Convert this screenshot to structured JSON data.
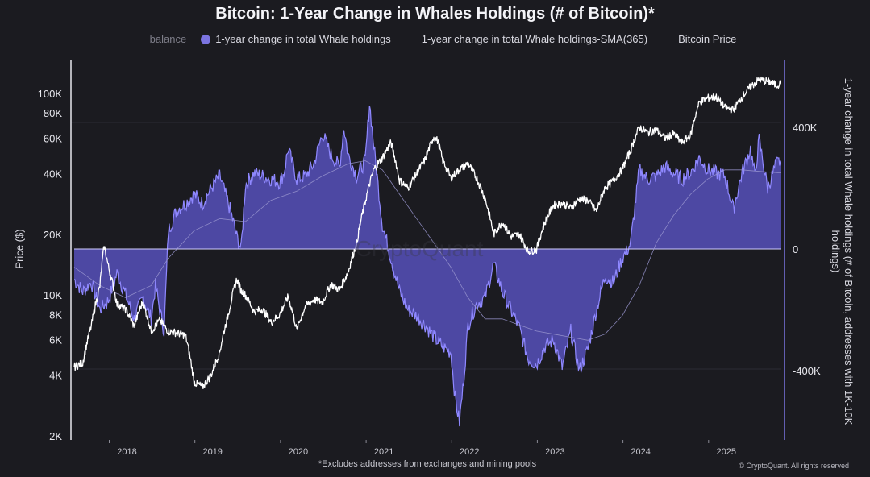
{
  "title": "Bitcoin: 1-Year Change in Whales Holdings (# of Bitcoin)*",
  "legend": [
    {
      "label": "balance",
      "style": "dim"
    },
    {
      "label": "1-year change in total Whale holdings",
      "style": "dot"
    },
    {
      "label": "1-year change in total Whale holdings-SMA(365)",
      "style": "sma"
    },
    {
      "label": "Bitcoin Price",
      "style": "white"
    }
  ],
  "footnote": "*Excludes addresses from exchanges and mining pools",
  "copyright": "© CryptoQuant. All rights reserved",
  "watermark": "CryptoQuant",
  "colors": {
    "background": "#1b1b20",
    "area_fill": "#5b55c8",
    "area_line": "#8f88ff",
    "price_line": "#ffffff",
    "sma_line": "#9a96d0",
    "right_axis": "#7b74e0"
  },
  "chart_data": {
    "type": "line",
    "title": "Bitcoin: 1-Year Change in Whales Holdings (# of Bitcoin)*",
    "xlabel": "",
    "ylabel_left": "Price ($)",
    "ylabel_right": "1-year change in total Whale holdings (# of Bitcoin, addresses with 1K-10K holdings)",
    "x_ticks": [
      "2018",
      "2019",
      "2020",
      "2021",
      "2022",
      "2023",
      "2024",
      "2025"
    ],
    "x_range": [
      2017.6,
      2025.85
    ],
    "y_left_scale": "log",
    "y_left_range": [
      2000,
      150000
    ],
    "y_left_ticks": [
      {
        "value": 2000,
        "label": "2K"
      },
      {
        "value": 4000,
        "label": "4K"
      },
      {
        "value": 6000,
        "label": "6K"
      },
      {
        "value": 8000,
        "label": "8K"
      },
      {
        "value": 10000,
        "label": "10K"
      },
      {
        "value": 20000,
        "label": "20K"
      },
      {
        "value": 40000,
        "label": "40K"
      },
      {
        "value": 60000,
        "label": "60K"
      },
      {
        "value": 80000,
        "label": "80K"
      },
      {
        "value": 100000,
        "label": "100K"
      }
    ],
    "y_right_range": [
      -600000,
      600000
    ],
    "y_right_ticks": [
      {
        "value": 400000,
        "label": "400K"
      },
      {
        "value": 0,
        "label": "0"
      },
      {
        "value": -400000,
        "label": "-400K"
      }
    ],
    "series": [
      {
        "name": "1-year change in total Whale holdings",
        "kind": "area",
        "x": [
          2017.6,
          2017.7,
          2017.8,
          2017.9,
          2018.0,
          2018.1,
          2018.2,
          2018.3,
          2018.4,
          2018.5,
          2018.55,
          2018.6,
          2018.65,
          2018.7,
          2018.8,
          2018.9,
          2019.0,
          2019.1,
          2019.2,
          2019.3,
          2019.4,
          2019.45,
          2019.5,
          2019.55,
          2019.6,
          2019.65,
          2019.7,
          2019.8,
          2019.9,
          2020.0,
          2020.05,
          2020.1,
          2020.2,
          2020.3,
          2020.4,
          2020.5,
          2020.6,
          2020.7,
          2020.75,
          2020.8,
          2020.9,
          2021.0,
          2021.05,
          2021.1,
          2021.2,
          2021.3,
          2021.4,
          2021.5,
          2021.6,
          2021.7,
          2021.8,
          2021.9,
          2022.0,
          2022.05,
          2022.1,
          2022.15,
          2022.2,
          2022.3,
          2022.4,
          2022.5,
          2022.6,
          2022.7,
          2022.8,
          2022.9,
          2023.0,
          2023.1,
          2023.2,
          2023.3,
          2023.4,
          2023.5,
          2023.6,
          2023.7,
          2023.8,
          2023.9,
          2024.0,
          2024.05,
          2024.1,
          2024.2,
          2024.3,
          2024.4,
          2024.5,
          2024.6,
          2024.7,
          2024.8,
          2024.9,
          2025.0,
          2025.1,
          2025.2,
          2025.3,
          2025.4,
          2025.5,
          2025.55,
          2025.6,
          2025.7,
          2025.8,
          2025.85
        ],
        "values": [
          -100000,
          -140000,
          -110000,
          -200000,
          -170000,
          -80000,
          -150000,
          -230000,
          -160000,
          -230000,
          -120000,
          -200000,
          -270000,
          60000,
          130000,
          150000,
          180000,
          150000,
          200000,
          240000,
          150000,
          100000,
          40000,
          0,
          210000,
          230000,
          250000,
          240000,
          230000,
          220000,
          250000,
          330000,
          230000,
          240000,
          280000,
          380000,
          310000,
          270000,
          400000,
          310000,
          240000,
          290000,
          480000,
          340000,
          80000,
          -30000,
          -140000,
          -200000,
          -220000,
          -250000,
          -290000,
          -320000,
          -340000,
          -490000,
          -570000,
          -430000,
          -250000,
          -180000,
          -160000,
          -50000,
          -140000,
          -200000,
          -260000,
          -360000,
          -380000,
          -320000,
          -300000,
          -390000,
          -270000,
          -400000,
          -330000,
          -200000,
          -90000,
          -110000,
          -30000,
          -10000,
          20000,
          260000,
          230000,
          240000,
          270000,
          250000,
          230000,
          250000,
          300000,
          260000,
          250000,
          240000,
          130000,
          250000,
          330000,
          240000,
          360000,
          200000,
          280000,
          290000
        ]
      },
      {
        "name": "1-year change in total Whale holdings-SMA(365)",
        "kind": "line",
        "x": [
          2017.6,
          2017.9,
          2018.2,
          2018.5,
          2018.7,
          2019.0,
          2019.3,
          2019.6,
          2019.9,
          2020.2,
          2020.5,
          2020.8,
          2021.0,
          2021.2,
          2021.4,
          2021.6,
          2021.8,
          2022.0,
          2022.2,
          2022.4,
          2022.6,
          2022.8,
          2023.0,
          2023.2,
          2023.4,
          2023.6,
          2023.8,
          2024.0,
          2024.2,
          2024.4,
          2024.6,
          2024.8,
          2025.0,
          2025.2,
          2025.4,
          2025.6,
          2025.85
        ],
        "values": [
          -60000,
          -120000,
          -160000,
          -120000,
          -30000,
          60000,
          100000,
          90000,
          160000,
          190000,
          240000,
          280000,
          290000,
          260000,
          180000,
          100000,
          20000,
          -60000,
          -160000,
          -230000,
          -230000,
          -250000,
          -270000,
          -280000,
          -290000,
          -300000,
          -280000,
          -220000,
          -120000,
          20000,
          110000,
          180000,
          230000,
          260000,
          260000,
          255000,
          250000
        ]
      },
      {
        "name": "Bitcoin Price",
        "kind": "line",
        "x": [
          2017.6,
          2017.7,
          2017.8,
          2017.9,
          2017.95,
          2018.0,
          2018.1,
          2018.2,
          2018.3,
          2018.4,
          2018.5,
          2018.6,
          2018.7,
          2018.8,
          2018.9,
          2019.0,
          2019.1,
          2019.2,
          2019.3,
          2019.4,
          2019.5,
          2019.55,
          2019.6,
          2019.7,
          2019.8,
          2019.9,
          2020.0,
          2020.1,
          2020.2,
          2020.3,
          2020.4,
          2020.5,
          2020.6,
          2020.7,
          2020.8,
          2020.9,
          2021.0,
          2021.1,
          2021.2,
          2021.3,
          2021.4,
          2021.5,
          2021.6,
          2021.7,
          2021.8,
          2021.85,
          2021.9,
          2022.0,
          2022.1,
          2022.2,
          2022.3,
          2022.4,
          2022.5,
          2022.6,
          2022.7,
          2022.8,
          2022.9,
          2023.0,
          2023.1,
          2023.2,
          2023.3,
          2023.4,
          2023.5,
          2023.6,
          2023.7,
          2023.8,
          2023.9,
          2024.0,
          2024.1,
          2024.2,
          2024.3,
          2024.4,
          2024.5,
          2024.6,
          2024.7,
          2024.8,
          2024.9,
          2025.0,
          2025.1,
          2025.2,
          2025.3,
          2025.4,
          2025.5,
          2025.6,
          2025.7,
          2025.8,
          2025.85
        ],
        "values": [
          4400,
          4600,
          7000,
          11000,
          17500,
          13800,
          9000,
          8500,
          7000,
          9200,
          6600,
          7500,
          6600,
          6500,
          6300,
          3700,
          3500,
          4000,
          5200,
          8000,
          12000,
          10500,
          10000,
          8300,
          8500,
          7300,
          8000,
          9800,
          6700,
          8800,
          9500,
          9200,
          11300,
          10600,
          13000,
          18000,
          29000,
          42000,
          48000,
          57000,
          37000,
          34000,
          40000,
          47000,
          61000,
          58000,
          47000,
          38000,
          42000,
          45000,
          38000,
          30000,
          20000,
          23000,
          19500,
          20000,
          16500,
          16800,
          23000,
          28000,
          28500,
          27000,
          30000,
          29500,
          26000,
          34000,
          37000,
          42000,
          52000,
          68000,
          64000,
          66000,
          60000,
          63000,
          57000,
          62000,
          90000,
          95000,
          96000,
          85000,
          83000,
          96000,
          108000,
          117000,
          115000,
          110000,
          112000
        ]
      }
    ]
  }
}
